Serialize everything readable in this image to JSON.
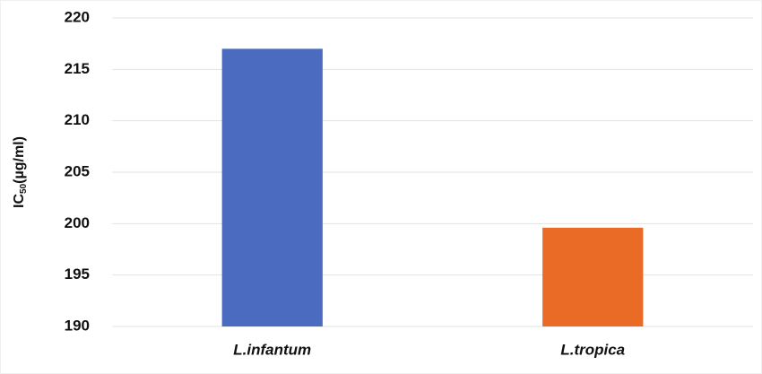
{
  "chart_data": {
    "type": "bar",
    "y_label": {
      "main": "IC",
      "sub": "50",
      "unit": "(µg/ml)"
    },
    "categories": [
      "L.infantum",
      "L.tropica"
    ],
    "values": [
      217,
      199.6
    ],
    "colors": [
      "#4a6bbf",
      "#ea6b25"
    ],
    "ylim": [
      190,
      220
    ],
    "yticks": [
      190,
      195,
      200,
      205,
      210,
      215,
      220
    ],
    "grid": true
  }
}
